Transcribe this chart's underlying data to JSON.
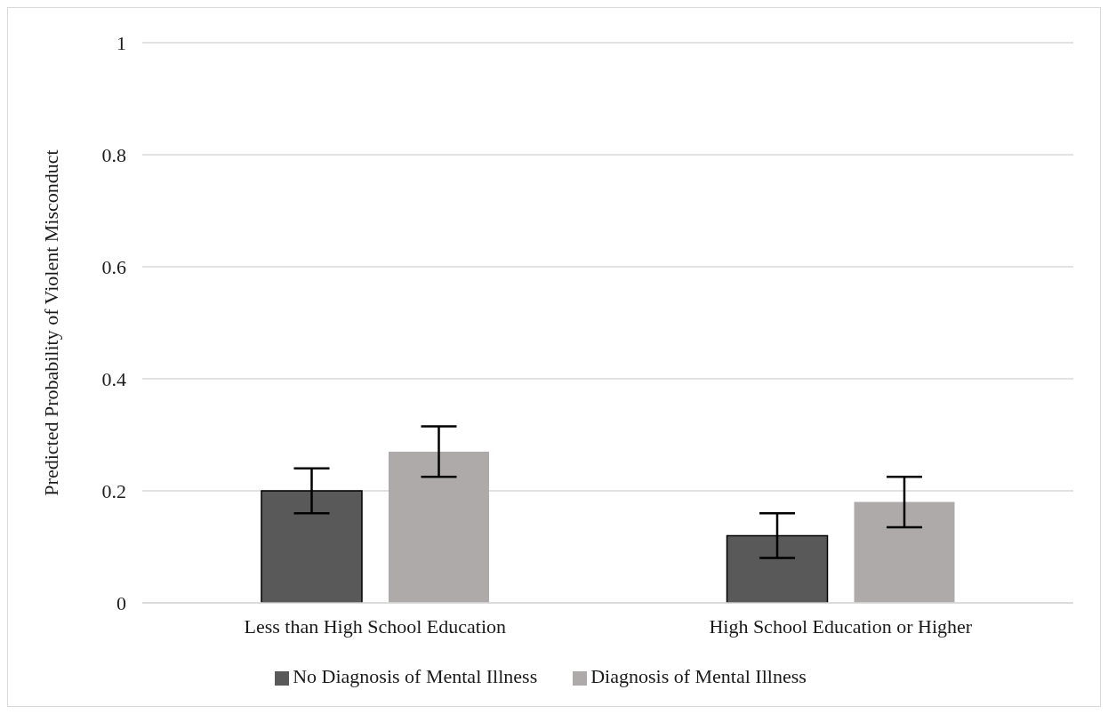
{
  "chart_data": {
    "type": "bar",
    "ylabel": "Predicted Probability of Violent Misconduct",
    "categories": [
      "Less than High School Education",
      "High School Education or Higher"
    ],
    "series": [
      {
        "name": "No Diagnosis of Mental Illness",
        "color": "#595959",
        "values": [
          0.2,
          0.12
        ],
        "errors": [
          0.04,
          0.04
        ]
      },
      {
        "name": "Diagnosis of Mental Illness",
        "color": "#aeaaaa",
        "values": [
          0.27,
          0.18
        ],
        "errors": [
          0.045,
          0.045
        ]
      }
    ],
    "ylim": [
      0,
      1
    ],
    "yticks": [
      0,
      {
        "value": 0.2,
        "label": "0.2"
      },
      {
        "value": 0.4,
        "label": "0.4"
      },
      {
        "value": 0.6,
        "label": "0.6"
      },
      {
        "value": 0.8,
        "label": "0.8"
      },
      1
    ],
    "grid": "y",
    "legend": "bottom"
  }
}
